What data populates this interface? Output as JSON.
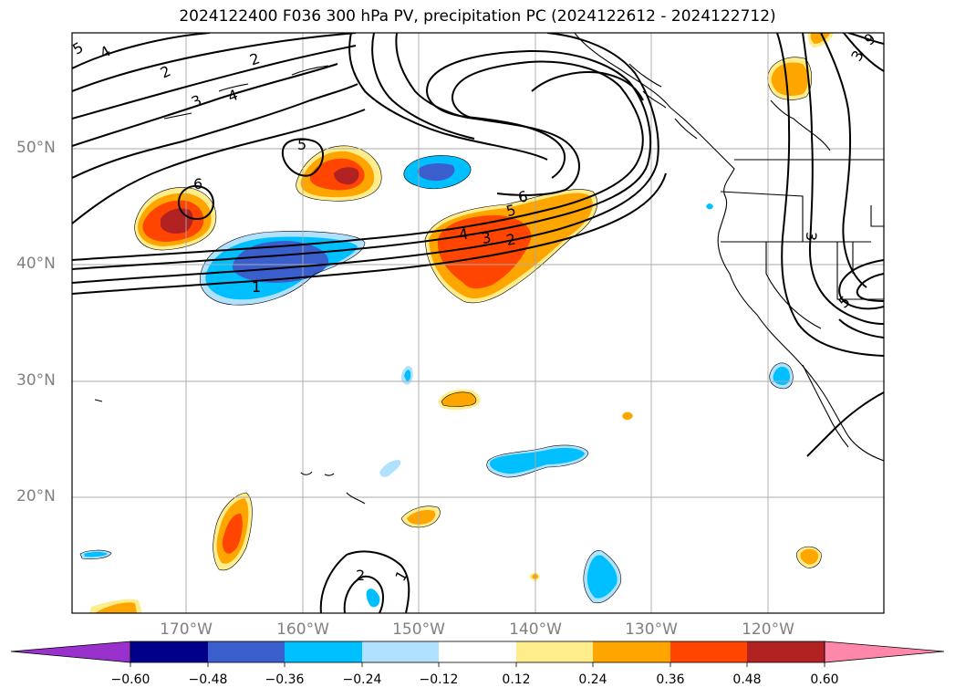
{
  "title": "2024122400 F036 300 hPa PV, precipitation PC (2024122612 - 2024122712)",
  "latitude_labels": [
    "50°N",
    "40°N",
    "30°N",
    "20°N"
  ],
  "longitude_labels": [
    "170°W",
    "160°W",
    "150°W",
    "140°W",
    "130°W",
    "120°W"
  ],
  "colorbar": {
    "tick_labels": [
      "−0.60",
      "−0.48",
      "−0.36",
      "−0.24",
      "−0.12",
      "0.12",
      "0.24",
      "0.36",
      "0.48",
      "0.60"
    ],
    "colors": [
      "#9932cc",
      "#00008b",
      "#3a5fcd",
      "#00bfff",
      "#b0e2ff",
      "#ffffff",
      "#ffec8b",
      "#ffa500",
      "#ff4500",
      "#b22222",
      "#ff88aa"
    ]
  },
  "contour_labels": [
    "5",
    "4",
    "2",
    "3",
    "4",
    "2",
    "5",
    "6",
    "6",
    "5",
    "4",
    "3",
    "2",
    "1",
    "3",
    "3",
    "5",
    "9",
    "2",
    "1"
  ],
  "fill_colors": {
    "orange": "#ffa500",
    "orange_red": "#ff4500",
    "firebrick": "#b22222",
    "light_yellow": "#ffec8b",
    "deep_sky_blue": "#00bfff",
    "royal_blue": "#3a5fcd",
    "light_sky_blue": "#b0e2ff"
  }
}
